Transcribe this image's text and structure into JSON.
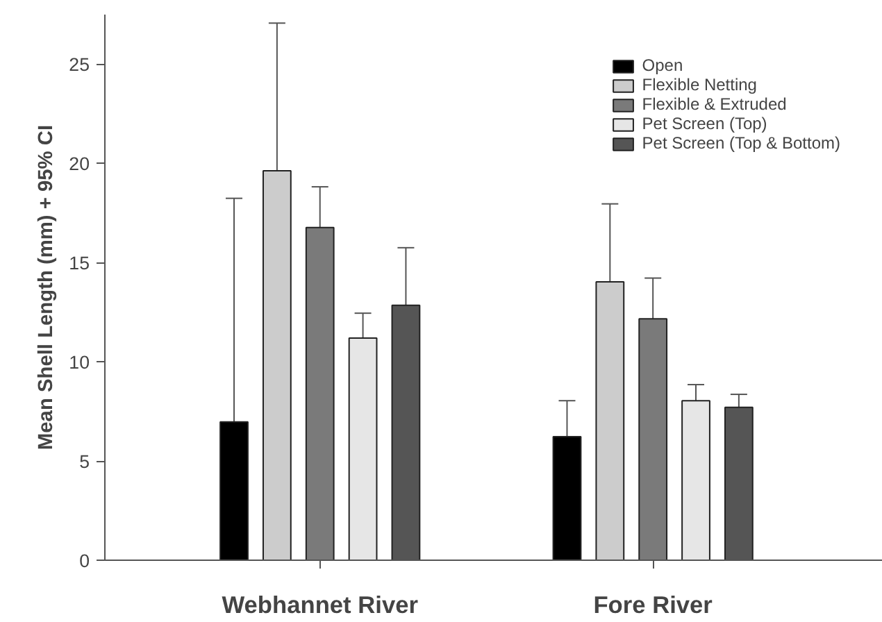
{
  "chart_data": {
    "type": "bar",
    "ylabel": "Mean Shell Length (mm) + 95% CI",
    "categories": [
      "Webhannet River",
      "Fore River"
    ],
    "series": [
      {
        "name": "Open",
        "color": "#000000",
        "values": [
          6.97,
          6.23
        ],
        "errors": [
          [
            6.97,
            18.24
          ],
          [
            6.23,
            8.04
          ]
        ]
      },
      {
        "name": "Flexible Netting",
        "color": "#cccccc",
        "values": [
          19.63,
          14.03
        ],
        "errors": [
          [
            19.63,
            27.07
          ],
          [
            14.03,
            17.96
          ]
        ]
      },
      {
        "name": "Flexible & Extruded",
        "color": "#7a7a7a",
        "values": [
          16.77,
          12.17
        ],
        "errors": [
          [
            16.77,
            18.82
          ],
          [
            12.17,
            14.22
          ]
        ]
      },
      {
        "name": "Pet Screen (Top)",
        "color": "#e6e6e6",
        "values": [
          11.2,
          8.04
        ],
        "errors": [
          [
            11.2,
            12.45
          ],
          [
            8.04,
            8.85
          ]
        ]
      },
      {
        "name": "Pet Screen (Top & Bottom)",
        "color": "#555555",
        "values": [
          12.85,
          7.71
        ],
        "errors": [
          [
            12.85,
            15.75
          ],
          [
            7.71,
            8.36
          ]
        ]
      }
    ],
    "ylim": [
      0,
      27.5
    ],
    "yticks": [
      0,
      5,
      10,
      15,
      20,
      25
    ],
    "grid": false,
    "legend": "top right"
  }
}
